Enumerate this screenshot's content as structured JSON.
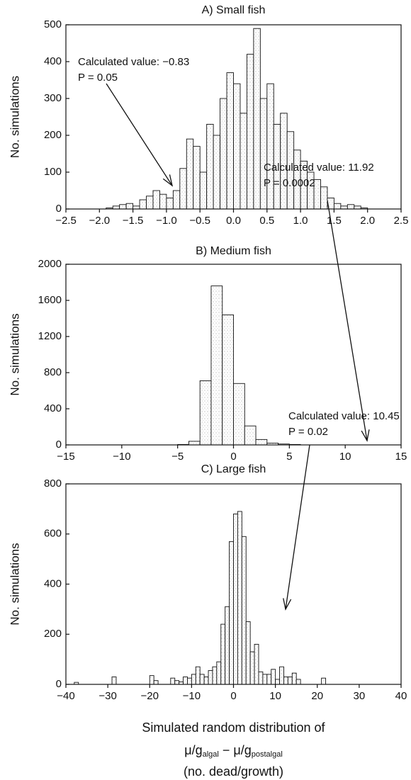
{
  "chart_data": [
    {
      "type": "histogram",
      "title": "A) Small fish",
      "ylabel": "No. simulations",
      "annotation": [
        "Calculated value: −0.83",
        "P = 0.05"
      ],
      "bins": [
        -1.9,
        -1.8,
        -1.7,
        -1.6,
        -1.5,
        -1.4,
        -1.3,
        -1.2,
        -1.1,
        -1.0,
        -0.9,
        -0.8,
        -0.7,
        -0.6,
        -0.5,
        -0.4,
        -0.3,
        -0.2,
        -0.1,
        0.0,
        0.1,
        0.2,
        0.3,
        0.4,
        0.5,
        0.6,
        0.7,
        0.8,
        0.9,
        1.0,
        1.1,
        1.2,
        1.3,
        1.4,
        1.5,
        1.6,
        1.7,
        1.8,
        1.9,
        2.0
      ],
      "counts": [
        3,
        8,
        12,
        15,
        8,
        25,
        35,
        50,
        40,
        30,
        50,
        110,
        190,
        170,
        100,
        230,
        200,
        300,
        370,
        340,
        260,
        420,
        490,
        300,
        340,
        230,
        260,
        210,
        160,
        130,
        100,
        80,
        60,
        30,
        15,
        8,
        12,
        8,
        3
      ],
      "xlim": [
        -2.5,
        2.5
      ],
      "xticks": [
        {
          "value": -2.5,
          "label": "−2.5"
        },
        {
          "value": -2.0,
          "label": "−2.0"
        },
        {
          "value": -1.5,
          "label": "−1.5"
        },
        {
          "value": -1.0,
          "label": "−1.0"
        },
        {
          "value": -0.5,
          "label": "−0.5"
        },
        {
          "value": 0,
          "label": "0.0"
        },
        0.5,
        {
          "value": 1,
          "label": "1.0"
        },
        1.5,
        {
          "value": 2,
          "label": "2.0"
        },
        2.5
      ],
      "ylim": [
        0,
        500
      ],
      "yticks": [
        0,
        100,
        200,
        300,
        400,
        500
      ]
    },
    {
      "type": "histogram",
      "title": "B) Medium fish",
      "ylabel": "No. simulations",
      "annotation": [
        "Calculated value: 11.92",
        "P = 0.0002"
      ],
      "bins": [
        -5,
        -4,
        -3,
        -2,
        -1,
        0,
        1,
        2,
        3,
        4,
        5,
        6
      ],
      "counts": [
        5,
        40,
        710,
        1760,
        1440,
        680,
        210,
        60,
        20,
        10,
        5
      ],
      "xlim": [
        -15,
        15
      ],
      "xticks": [
        {
          "value": -15,
          "label": "−15"
        },
        {
          "value": -10,
          "label": "−10"
        },
        {
          "value": -5,
          "label": "−5"
        },
        0,
        5,
        10,
        15
      ],
      "ylim": [
        0,
        2000
      ],
      "yticks": [
        0,
        400,
        800,
        1200,
        1600,
        2000
      ]
    },
    {
      "type": "histogram",
      "title": "C) Large fish",
      "ylabel": "No. simulations",
      "annotation": [
        "Calculated value: 10.45",
        "P = 0.02"
      ],
      "xlabel": [
        "Simulated random distribution of",
        [
          "μ/g",
          "algal",
          " − μ/g",
          "postalgal"
        ],
        "(no. dead/growth)"
      ],
      "bins": [
        -38,
        -37,
        -36,
        -35,
        -34,
        -33,
        -32,
        -31,
        -30,
        -29,
        -28,
        -27,
        -26,
        -25,
        -24,
        -23,
        -22,
        -21,
        -20,
        -19,
        -18,
        -17,
        -16,
        -15,
        -14,
        -13,
        -12,
        -11,
        -10,
        -9,
        -8,
        -7,
        -6,
        -5,
        -4,
        -3,
        -2,
        -1,
        0,
        1,
        2,
        3,
        4,
        5,
        6,
        7,
        8,
        9,
        10,
        11,
        12,
        13,
        14,
        15,
        16,
        17,
        18,
        19,
        20,
        21,
        22
      ],
      "counts": [
        8,
        0,
        0,
        0,
        0,
        0,
        0,
        0,
        0,
        30,
        0,
        0,
        0,
        0,
        0,
        0,
        0,
        0,
        35,
        15,
        0,
        0,
        0,
        25,
        15,
        10,
        30,
        25,
        40,
        70,
        40,
        30,
        55,
        70,
        90,
        240,
        310,
        570,
        680,
        690,
        590,
        250,
        130,
        160,
        50,
        40,
        40,
        60,
        20,
        70,
        30,
        30,
        45,
        20,
        0,
        0,
        0,
        0,
        0,
        25
      ],
      "xlim": [
        -40,
        40
      ],
      "xticks": [
        {
          "value": -40,
          "label": "−40"
        },
        {
          "value": -30,
          "label": "−30"
        },
        {
          "value": -20,
          "label": "−20"
        },
        {
          "value": -10,
          "label": "−10"
        },
        0,
        10,
        20,
        30,
        40
      ],
      "ylim": [
        0,
        800
      ],
      "yticks": [
        0,
        200,
        400,
        600,
        800
      ]
    }
  ]
}
